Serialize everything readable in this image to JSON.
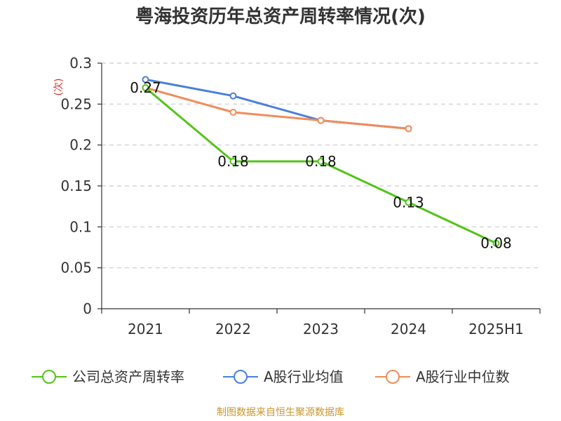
{
  "chart_data": {
    "type": "line",
    "title": "粤海投资历年总资产周转率情况(次)",
    "ylabel": "(次)",
    "xlabel": "",
    "categories": [
      "2021",
      "2022",
      "2023",
      "2024",
      "2025H1"
    ],
    "ylim": [
      0,
      0.3
    ],
    "yticks": [
      "0",
      "0.05",
      "0.1",
      "0.15",
      "0.2",
      "0.25",
      "0.3"
    ],
    "grid": true,
    "legend_position": "bottom",
    "series": [
      {
        "name": "公司总资产周转率",
        "color": "#52c41a",
        "values": [
          0.27,
          0.18,
          0.18,
          0.13,
          0.08
        ],
        "labels": [
          "0.27",
          "0.18",
          "0.18",
          "0.13",
          "0.08"
        ]
      },
      {
        "name": "A股行业均值",
        "color": "#4a7fdb",
        "values": [
          0.28,
          0.26,
          0.23,
          0.22,
          null
        ]
      },
      {
        "name": "A股行业中位数",
        "color": "#f08c5a",
        "values": [
          0.27,
          0.24,
          0.23,
          0.22,
          null
        ]
      }
    ],
    "source": "制图数据来自恒生聚源数据库"
  }
}
